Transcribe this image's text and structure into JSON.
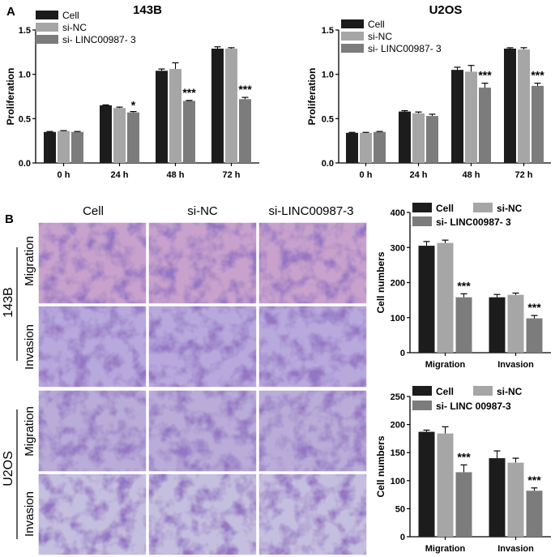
{
  "figure": {
    "panel_a_label": "A",
    "panel_b_label": "B",
    "micrographs": {
      "column_labels": [
        "Cell",
        "si-NC",
        "si-LINC00987-3"
      ],
      "cell_lines": [
        "143B",
        "U2OS"
      ],
      "row_labels": [
        "Migration",
        "Invasion"
      ]
    }
  },
  "colors": {
    "Cell": "#1c1c1c",
    "si-NC": "#a6a6a6",
    "si-LINC": "#7c7c7c"
  },
  "chart_data": [
    {
      "id": "a1",
      "type": "bar",
      "title": "143B",
      "ylabel": "Proliferation",
      "xlabel": "",
      "ylim": [
        0,
        1.5
      ],
      "yticks": [
        "0.0",
        "0.5",
        "1.0",
        "1.5"
      ],
      "categories": [
        "0 h",
        "24 h",
        "48 h",
        "72 h"
      ],
      "legend_position": "top-left",
      "series": [
        {
          "name": "Cell",
          "color_key": "Cell",
          "values": [
            0.35,
            0.65,
            1.04,
            1.29
          ],
          "errors": [
            0.005,
            0.005,
            0.02,
            0.02
          ]
        },
        {
          "name": "si-NC",
          "color_key": "si-NC",
          "values": [
            0.36,
            0.62,
            1.06,
            1.29
          ],
          "errors": [
            0.005,
            0.01,
            0.07,
            0.01
          ]
        },
        {
          "name": "si- LINC00987- 3",
          "color_key": "si-LINC",
          "values": [
            0.35,
            0.57,
            0.7,
            0.72
          ],
          "errors": [
            0.005,
            0.01,
            0.005,
            0.02
          ]
        }
      ],
      "annotations": [
        {
          "category_index": 1,
          "series_index": 2,
          "text": "*"
        },
        {
          "category_index": 2,
          "series_index": 2,
          "text": "***"
        },
        {
          "category_index": 3,
          "series_index": 2,
          "text": "***"
        }
      ]
    },
    {
      "id": "a2",
      "type": "bar",
      "title": "U2OS",
      "ylabel": "Proliferation",
      "xlabel": "",
      "ylim": [
        0,
        1.5
      ],
      "yticks": [
        "0.0",
        "0.5",
        "1.0",
        "1.5"
      ],
      "categories": [
        "0 h",
        "24 h",
        "48 h",
        "72 h"
      ],
      "legend_position": "top-left",
      "series": [
        {
          "name": "Cell",
          "color_key": "Cell",
          "values": [
            0.34,
            0.58,
            1.05,
            1.29
          ],
          "errors": [
            0.005,
            0.01,
            0.03,
            0.01
          ]
        },
        {
          "name": "si-NC",
          "color_key": "si-NC",
          "values": [
            0.34,
            0.56,
            1.03,
            1.28
          ],
          "errors": [
            0.005,
            0.015,
            0.07,
            0.02
          ]
        },
        {
          "name": "si- LINC00987- 3",
          "color_key": "si-LINC",
          "values": [
            0.35,
            0.53,
            0.85,
            0.87
          ],
          "errors": [
            0.005,
            0.02,
            0.05,
            0.03
          ]
        }
      ],
      "annotations": [
        {
          "category_index": 2,
          "series_index": 2,
          "text": "***"
        },
        {
          "category_index": 3,
          "series_index": 2,
          "text": "***"
        }
      ]
    },
    {
      "id": "b1",
      "type": "bar",
      "title": "",
      "ylabel": "Cell numbers",
      "xlabel": "",
      "ylim": [
        0,
        400
      ],
      "yticks": [
        "0",
        "100",
        "200",
        "300",
        "400"
      ],
      "categories": [
        "Migration",
        "Invasion"
      ],
      "legend_position": "top",
      "series": [
        {
          "name": "Cell",
          "color_key": "Cell",
          "values": [
            305,
            158
          ],
          "errors": [
            12,
            8
          ]
        },
        {
          "name": "si-NC",
          "color_key": "si-NC",
          "values": [
            313,
            165
          ],
          "errors": [
            8,
            5
          ]
        },
        {
          "name": "si- LINC00987- 3",
          "color_key": "si-LINC",
          "values": [
            158,
            98
          ],
          "errors": [
            10,
            8
          ]
        }
      ],
      "annotations": [
        {
          "category_index": 0,
          "series_index": 2,
          "text": "***"
        },
        {
          "category_index": 1,
          "series_index": 2,
          "text": "***"
        }
      ]
    },
    {
      "id": "b2",
      "type": "bar",
      "title": "",
      "ylabel": "Cell numbers",
      "xlabel": "",
      "ylim": [
        0,
        250
      ],
      "yticks": [
        "0",
        "50",
        "100",
        "150",
        "200",
        "250"
      ],
      "categories": [
        "Migration",
        "Invasion"
      ],
      "legend_position": "top",
      "series": [
        {
          "name": "Cell",
          "color_key": "Cell",
          "values": [
            187,
            140
          ],
          "errors": [
            3,
            13
          ]
        },
        {
          "name": "si-NC",
          "color_key": "si-NC",
          "values": [
            184,
            132
          ],
          "errors": [
            12,
            8
          ]
        },
        {
          "name": "si- LINC 00987-3",
          "color_key": "si-LINC",
          "values": [
            115,
            82
          ],
          "errors": [
            13,
            5
          ]
        }
      ],
      "annotations": [
        {
          "category_index": 0,
          "series_index": 2,
          "text": "***"
        },
        {
          "category_index": 1,
          "series_index": 2,
          "text": "***"
        }
      ]
    }
  ]
}
